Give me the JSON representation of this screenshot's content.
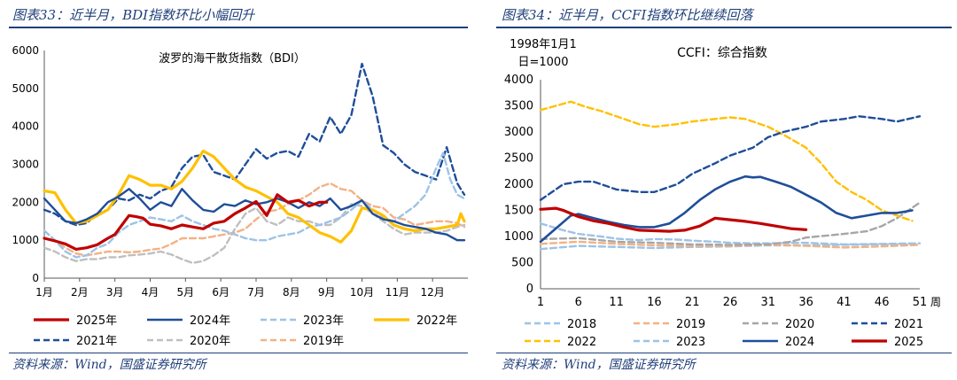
{
  "left": {
    "panel_title": "图表33：近半月，BDI指数环比小幅回升",
    "source": "资料来源：Wind，国盛证券研究所"
  },
  "right": {
    "panel_title": "图表34：近半月，CCFI指数环比继续回落",
    "source": "资料来源：Wind，国盛证券研究所"
  },
  "chart_data": [
    {
      "type": "line",
      "title": "波罗的海干散货指数（BDI）",
      "x_tick_labels": [
        "1月",
        "2月",
        "3月",
        "4月",
        "5月",
        "6月",
        "7月",
        "8月",
        "9月",
        "10月",
        "11月",
        "12月"
      ],
      "y_ticks": [
        "0",
        "1000",
        "2000",
        "3000",
        "4000",
        "5000",
        "6000"
      ],
      "ylim": [
        0,
        6000
      ],
      "x_unit": "month index (1 = Jan)",
      "legend_columns": 4,
      "series": [
        {
          "name": "2025年",
          "color": "#c00000",
          "dash": "solid",
          "width": 3.2,
          "x": [
            1,
            1.3,
            1.6,
            1.9,
            2.2,
            2.5,
            2.8,
            3,
            3.2,
            3.4,
            3.6,
            3.8,
            4,
            4.3,
            4.6,
            4.9,
            5.2,
            5.5,
            5.8,
            6.1,
            6.4,
            6.7,
            7,
            7.3,
            7.6,
            7.9,
            8.2,
            8.5,
            8.8,
            9
          ],
          "y": [
            1050,
            980,
            900,
            760,
            800,
            880,
            1050,
            1150,
            1400,
            1650,
            1620,
            1580,
            1420,
            1380,
            1300,
            1400,
            1350,
            1300,
            1450,
            1500,
            1700,
            1850,
            2020,
            1650,
            2200,
            2000,
            2050,
            1900,
            2000,
            2000
          ]
        },
        {
          "name": "2024年",
          "color": "#1f4e99",
          "dash": "solid",
          "width": 2.4,
          "x": [
            1,
            1.3,
            1.6,
            1.9,
            2.2,
            2.5,
            2.8,
            3.1,
            3.4,
            3.7,
            4,
            4.3,
            4.6,
            4.9,
            5.2,
            5.5,
            5.8,
            6.1,
            6.4,
            6.7,
            7,
            7.3,
            7.6,
            7.9,
            8.2,
            8.5,
            8.8,
            9.1,
            9.4,
            9.7,
            10,
            10.3,
            10.6,
            10.9,
            11.2,
            11.5,
            11.8,
            12.1,
            12.4,
            12.7,
            12.9
          ],
          "y": [
            2100,
            1800,
            1500,
            1450,
            1550,
            1700,
            2000,
            2150,
            2350,
            2100,
            1800,
            2000,
            1900,
            2350,
            2050,
            1800,
            1750,
            1950,
            1900,
            2050,
            1950,
            2000,
            2100,
            2000,
            1850,
            2000,
            1900,
            2100,
            1800,
            1900,
            2050,
            1700,
            1550,
            1500,
            1400,
            1350,
            1300,
            1200,
            1150,
            1000,
            1000
          ]
        },
        {
          "name": "2023年",
          "color": "#9dc3e6",
          "dash": "dash",
          "width": 2.4,
          "x": [
            1,
            1.3,
            1.6,
            1.9,
            2.2,
            2.5,
            2.8,
            3.1,
            3.4,
            3.7,
            4,
            4.3,
            4.6,
            4.9,
            5.2,
            5.5,
            5.8,
            6.1,
            6.4,
            6.7,
            7,
            7.3,
            7.6,
            7.9,
            8.2,
            8.5,
            8.8,
            9.1,
            9.4,
            9.7,
            10,
            10.3,
            10.6,
            10.9,
            11.2,
            11.5,
            11.8,
            12.1,
            12.3,
            12.5,
            12.7,
            12.9
          ],
          "y": [
            1250,
            1000,
            700,
            550,
            600,
            800,
            900,
            1200,
            1400,
            1500,
            1600,
            1550,
            1500,
            1650,
            1500,
            1400,
            1300,
            1250,
            1150,
            1050,
            1000,
            1000,
            1100,
            1150,
            1200,
            1350,
            1400,
            1500,
            1600,
            1800,
            2050,
            1800,
            1600,
            1500,
            1700,
            1900,
            2200,
            2900,
            3300,
            2600,
            2200,
            2100
          ]
        },
        {
          "name": "2022年",
          "color": "#ffc000",
          "dash": "solid",
          "width": 3.2,
          "x": [
            1,
            1.3,
            1.6,
            1.9,
            2.2,
            2.5,
            2.8,
            3.1,
            3.4,
            3.7,
            4,
            4.3,
            4.6,
            4.9,
            5.2,
            5.5,
            5.8,
            6.1,
            6.4,
            6.7,
            7,
            7.3,
            7.6,
            7.9,
            8.2,
            8.5,
            8.8,
            9.1,
            9.4,
            9.7,
            10,
            10.3,
            10.6,
            10.9,
            11.2,
            11.5,
            11.8,
            12.1,
            12.4,
            12.7,
            12.8,
            12.9
          ],
          "y": [
            2300,
            2250,
            1800,
            1450,
            1500,
            1650,
            1800,
            2200,
            2700,
            2600,
            2450,
            2450,
            2350,
            2550,
            2900,
            3350,
            3200,
            2900,
            2600,
            2400,
            2300,
            2150,
            2000,
            1700,
            1600,
            1400,
            1200,
            1100,
            950,
            1250,
            1850,
            1800,
            1650,
            1400,
            1300,
            1250,
            1300,
            1300,
            1350,
            1400,
            1700,
            1500
          ]
        },
        {
          "name": "2021年",
          "color": "#1f4e99",
          "dash": "dash",
          "width": 2.4,
          "x": [
            1,
            1.3,
            1.6,
            1.9,
            2.2,
            2.5,
            2.8,
            3.1,
            3.4,
            3.7,
            4,
            4.3,
            4.6,
            4.9,
            5.2,
            5.5,
            5.8,
            6.1,
            6.4,
            6.7,
            7,
            7.3,
            7.6,
            7.9,
            8.2,
            8.5,
            8.8,
            9.1,
            9.4,
            9.7,
            10,
            10.3,
            10.6,
            10.9,
            11.2,
            11.5,
            11.8,
            12.1,
            12.4,
            12.7,
            12.9
          ],
          "y": [
            1800,
            1700,
            1500,
            1400,
            1450,
            1700,
            1800,
            2100,
            2050,
            2200,
            2100,
            2300,
            2400,
            2900,
            3200,
            3250,
            2800,
            2700,
            2600,
            3000,
            3400,
            3150,
            3300,
            3350,
            3200,
            3800,
            3600,
            4250,
            3800,
            4300,
            5650,
            4800,
            3500,
            3300,
            3000,
            2800,
            2700,
            2600,
            3450,
            2500,
            2200
          ]
        },
        {
          "name": "2020年",
          "color": "#bfbfbf",
          "dash": "dash",
          "width": 2.4,
          "x": [
            1,
            1.3,
            1.6,
            1.9,
            2.2,
            2.5,
            2.8,
            3.1,
            3.4,
            3.7,
            4,
            4.3,
            4.6,
            4.9,
            5.2,
            5.5,
            5.8,
            6.1,
            6.4,
            6.7,
            7,
            7.3,
            7.6,
            7.9,
            8.2,
            8.5,
            8.8,
            9.1,
            9.4,
            9.7,
            10,
            10.3,
            10.6,
            10.9,
            11.2,
            11.5,
            11.8,
            12.1,
            12.4,
            12.7,
            12.9
          ],
          "y": [
            800,
            700,
            550,
            450,
            500,
            500,
            550,
            550,
            600,
            620,
            650,
            700,
            620,
            500,
            400,
            450,
            600,
            800,
            1300,
            1700,
            1850,
            1500,
            1400,
            1600,
            1500,
            1500,
            1400,
            1400,
            1600,
            1950,
            1900,
            1700,
            1500,
            1300,
            1150,
            1200,
            1200,
            1200,
            1250,
            1350,
            1400
          ]
        },
        {
          "name": "2019年",
          "color": "#f4b183",
          "dash": "dash",
          "width": 2.4,
          "x": [
            1,
            1.3,
            1.6,
            1.9,
            2.2,
            2.5,
            2.8,
            3.1,
            3.4,
            3.7,
            4,
            4.3,
            4.6,
            4.9,
            5.2,
            5.5,
            5.8,
            6.1,
            6.4,
            6.7,
            7,
            7.3,
            7.6,
            7.9,
            8.2,
            8.5,
            8.8,
            9.1,
            9.4,
            9.7,
            10,
            10.3,
            10.6,
            10.9,
            11.2,
            11.5,
            11.8,
            12.1,
            12.4,
            12.7,
            12.9
          ],
          "y": [
            1250,
            1000,
            800,
            650,
            600,
            650,
            700,
            700,
            680,
            700,
            750,
            780,
            900,
            1050,
            1050,
            1050,
            1100,
            1150,
            1200,
            1300,
            1550,
            1750,
            1800,
            1950,
            2050,
            2200,
            2400,
            2500,
            2350,
            2300,
            2050,
            1900,
            1850,
            1600,
            1550,
            1400,
            1450,
            1500,
            1500,
            1450,
            1350
          ]
        }
      ]
    },
    {
      "type": "line",
      "title": "CCFI：综合指数",
      "ylabel": "1998年1月1日=1000",
      "x_unit_label": "周",
      "x_ticks": [
        "1",
        "6",
        "11",
        "16",
        "21",
        "26",
        "31",
        "36",
        "41",
        "46",
        "51"
      ],
      "y_ticks": [
        "0",
        "500",
        "1000",
        "1500",
        "2000",
        "2500",
        "3000",
        "3500",
        "4000"
      ],
      "ylim": [
        0,
        4000
      ],
      "xlim": [
        1,
        51
      ],
      "legend_columns": 4,
      "series": [
        {
          "name": "2018",
          "color": "#9dc3e6",
          "dash": "dash",
          "width": 2.4,
          "x": [
            1,
            6,
            11,
            16,
            21,
            26,
            31,
            36,
            41,
            46,
            51
          ],
          "y": [
            760,
            820,
            800,
            780,
            800,
            810,
            830,
            830,
            840,
            850,
            840
          ]
        },
        {
          "name": "2019",
          "color": "#f4b183",
          "dash": "dash",
          "width": 2.4,
          "x": [
            1,
            6,
            11,
            16,
            21,
            26,
            31,
            36,
            41,
            46,
            51
          ],
          "y": [
            860,
            900,
            860,
            830,
            820,
            820,
            840,
            820,
            790,
            810,
            840
          ]
        },
        {
          "name": "2020",
          "color": "#a6a6a6",
          "dash": "dash",
          "width": 2.4,
          "x": [
            1,
            6,
            11,
            16,
            21,
            26,
            31,
            34,
            36,
            41,
            44,
            46,
            48,
            51
          ],
          "y": [
            950,
            970,
            900,
            880,
            850,
            840,
            850,
            900,
            980,
            1050,
            1100,
            1200,
            1350,
            1650
          ]
        },
        {
          "name": "2021",
          "color": "#1f4e99",
          "dash": "dash",
          "width": 2.4,
          "x": [
            1,
            4,
            6,
            8,
            11,
            14,
            16,
            19,
            21,
            24,
            26,
            29,
            31,
            33,
            36,
            38,
            41,
            43,
            46,
            48,
            51
          ],
          "y": [
            1700,
            2000,
            2050,
            2050,
            1900,
            1850,
            1850,
            2000,
            2200,
            2400,
            2550,
            2700,
            2900,
            3000,
            3100,
            3200,
            3250,
            3300,
            3250,
            3200,
            3300
          ]
        },
        {
          "name": "2022",
          "color": "#ffc000",
          "dash": "dash",
          "width": 2.4,
          "x": [
            1,
            3,
            5,
            7,
            9,
            11,
            14,
            16,
            19,
            21,
            24,
            26,
            28,
            31,
            33,
            36,
            38,
            40,
            42,
            44,
            46,
            48,
            50
          ],
          "y": [
            3420,
            3500,
            3580,
            3480,
            3400,
            3300,
            3150,
            3100,
            3150,
            3200,
            3250,
            3280,
            3250,
            3100,
            2950,
            2700,
            2400,
            2050,
            1850,
            1700,
            1500,
            1400,
            1300
          ]
        },
        {
          "name": "2023",
          "color": "#9dc3e6",
          "dash": "dash",
          "width": 2.4,
          "x": [
            1,
            4,
            6,
            9,
            11,
            14,
            16,
            19,
            21,
            24,
            26,
            29,
            31,
            36,
            41,
            46,
            51
          ],
          "y": [
            1250,
            1120,
            1050,
            1000,
            960,
            930,
            950,
            940,
            920,
            900,
            880,
            870,
            870,
            880,
            850,
            860,
            870
          ]
        },
        {
          "name": "2024",
          "color": "#1f4e99",
          "dash": "solid",
          "width": 2.6,
          "x": [
            1,
            3,
            5,
            6,
            8,
            10,
            12,
            14,
            16,
            18,
            20,
            22,
            24,
            26,
            28,
            29,
            30,
            32,
            34,
            36,
            38,
            40,
            42,
            44,
            46,
            48,
            50
          ],
          "y": [
            900,
            1150,
            1400,
            1430,
            1350,
            1280,
            1220,
            1180,
            1180,
            1250,
            1450,
            1700,
            1900,
            2050,
            2150,
            2130,
            2140,
            2050,
            1950,
            1800,
            1650,
            1450,
            1350,
            1400,
            1450,
            1450,
            1500
          ]
        },
        {
          "name": "2025",
          "color": "#c00000",
          "dash": "solid",
          "width": 3.2,
          "x": [
            1,
            3,
            4,
            6,
            8,
            10,
            12,
            14,
            16,
            18,
            20,
            22,
            24,
            26,
            28,
            30,
            32,
            34,
            36
          ],
          "y": [
            1520,
            1540,
            1500,
            1380,
            1300,
            1250,
            1180,
            1120,
            1110,
            1100,
            1120,
            1200,
            1350,
            1320,
            1290,
            1250,
            1200,
            1150,
            1130
          ]
        }
      ]
    }
  ]
}
